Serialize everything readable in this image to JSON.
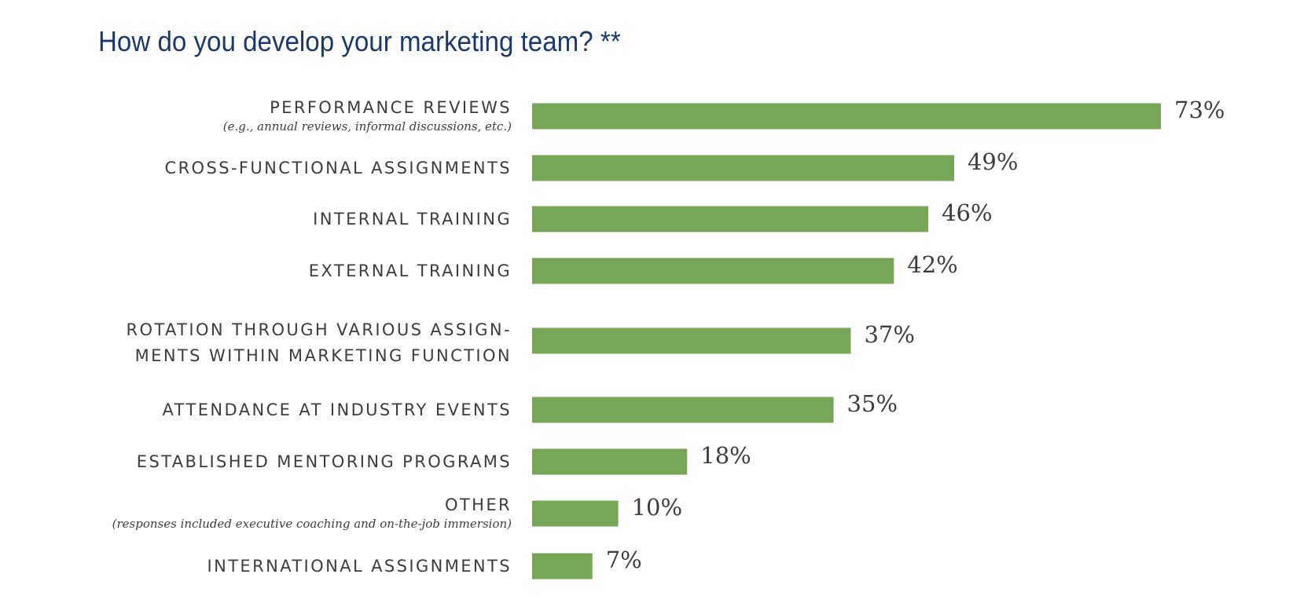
{
  "chart_data": {
    "type": "bar",
    "orientation": "horizontal",
    "title": "How do you develop your marketing team? **",
    "xlabel": "",
    "ylabel": "",
    "xlim": [
      0,
      73
    ],
    "grid": false,
    "legend": "none",
    "value_suffix": "%",
    "bar_color": "#78a657",
    "title_color": "#1b3a6b",
    "text_color": "#3d3d3d",
    "categories": [
      {
        "lines": [
          "PERFORMANCE REVIEWS"
        ],
        "note": "(e.g., annual reviews, informal discussions, etc.)"
      },
      {
        "lines": [
          "CROSS-FUNCTIONAL ASSIGNMENTS"
        ],
        "note": ""
      },
      {
        "lines": [
          "INTERNAL TRAINING"
        ],
        "note": ""
      },
      {
        "lines": [
          "EXTERNAL TRAINING"
        ],
        "note": ""
      },
      {
        "lines": [
          "ROTATION THROUGH VARIOUS ASSIGN-",
          "MENTS WITHIN MARKETING FUNCTION"
        ],
        "note": ""
      },
      {
        "lines": [
          "ATTENDANCE AT INDUSTRY EVENTS"
        ],
        "note": ""
      },
      {
        "lines": [
          "ESTABLISHED MENTORING PROGRAMS"
        ],
        "note": ""
      },
      {
        "lines": [
          "OTHER"
        ],
        "note": "(responses included executive coaching and on-the-job immersion)"
      },
      {
        "lines": [
          "INTERNATIONAL ASSIGNMENTS"
        ],
        "note": ""
      }
    ],
    "values": [
      73,
      49,
      46,
      42,
      37,
      35,
      18,
      10,
      7
    ],
    "value_labels": [
      "73%",
      "49%",
      "46%",
      "42%",
      "37%",
      "35%",
      "18%",
      "10%",
      "7%"
    ]
  }
}
